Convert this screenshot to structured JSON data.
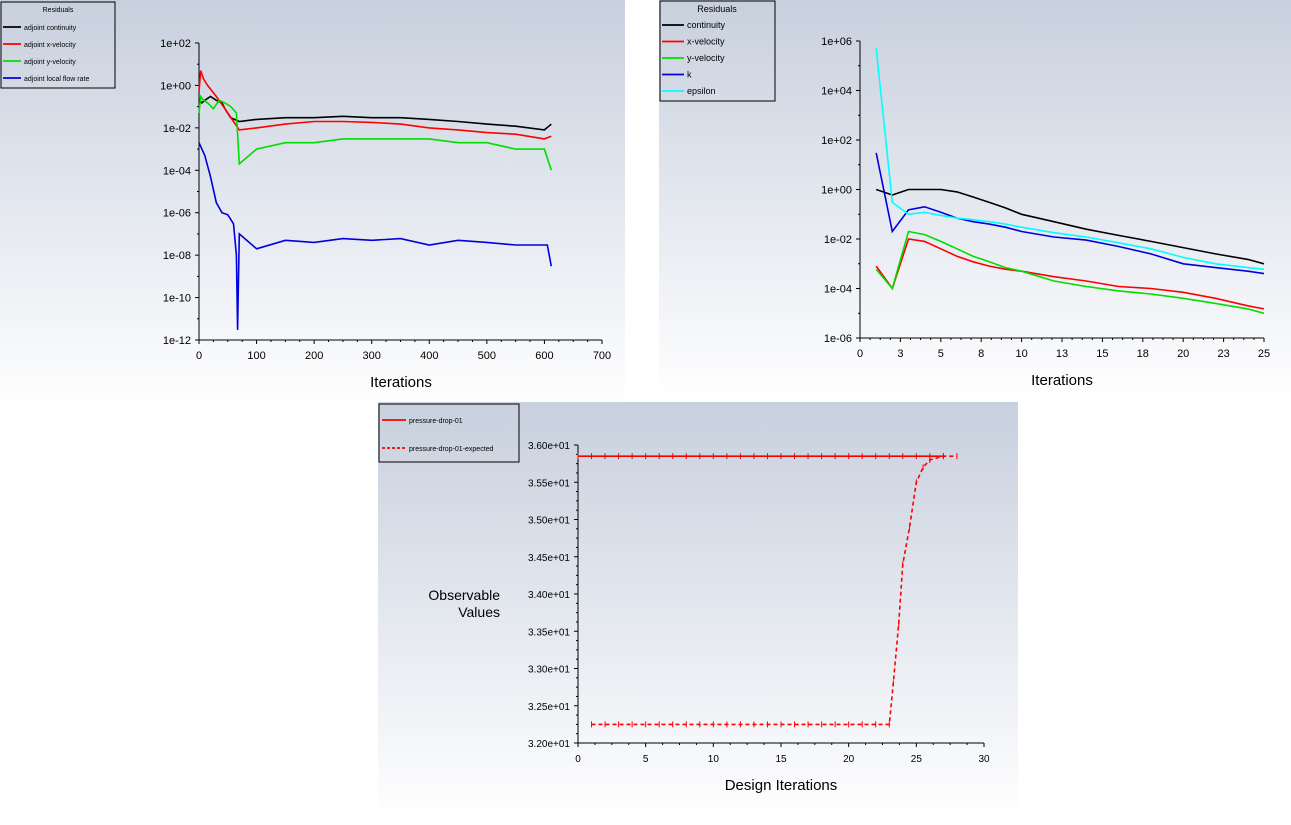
{
  "colors": {
    "bg_top": "#c8d0de",
    "bg_bottom": "#ffffff",
    "black": "#000000",
    "red": "#ff0000",
    "green": "#00dd00",
    "blue": "#0000dd",
    "cyan": "#00ffff"
  },
  "chart_data": [
    {
      "type": "line",
      "id": "adjoint",
      "legend_title": "Residuals",
      "xlabel": "Iterations",
      "ylabel": "",
      "xlim": [
        0,
        700
      ],
      "ylim": [
        1e-12,
        100
      ],
      "yscale": "log",
      "x_ticks": [
        "0",
        "100",
        "200",
        "300",
        "400",
        "500",
        "600",
        "700"
      ],
      "x_tick_values": [
        0,
        100,
        200,
        300,
        400,
        500,
        600,
        700
      ],
      "y_ticks": [
        "1e+02",
        "1e+00",
        "1e-02",
        "1e-04",
        "1e-06",
        "1e-08",
        "1e-10",
        "1e-12"
      ],
      "y_tick_values": [
        100.0,
        1.0,
        0.01,
        0.0001,
        1e-06,
        1e-08,
        1e-10,
        1e-12
      ],
      "series": [
        {
          "name": "adjoint continuity",
          "color": "black",
          "x": [
            0,
            5,
            10,
            20,
            30,
            40,
            45,
            55,
            70,
            100,
            150,
            200,
            250,
            300,
            350,
            400,
            450,
            500,
            550,
            600,
            612
          ],
          "y": [
            0.2,
            0.15,
            0.2,
            0.3,
            0.2,
            0.15,
            0.08,
            0.03,
            0.02,
            0.025,
            0.03,
            0.03,
            0.035,
            0.03,
            0.03,
            0.025,
            0.02,
            0.015,
            0.012,
            0.008,
            0.015
          ]
        },
        {
          "name": "adjoint x-velocity",
          "color": "red",
          "x": [
            0,
            3,
            8,
            15,
            30,
            45,
            60,
            70,
            100,
            150,
            200,
            250,
            300,
            350,
            400,
            450,
            500,
            550,
            600,
            612
          ],
          "y": [
            0.5,
            5,
            2,
            1.0,
            0.3,
            0.08,
            0.02,
            0.008,
            0.01,
            0.015,
            0.02,
            0.02,
            0.018,
            0.015,
            0.01,
            0.008,
            0.006,
            0.005,
            0.003,
            0.004
          ]
        },
        {
          "name": "adjoint y-velocity",
          "color": "green",
          "x": [
            0,
            3,
            8,
            15,
            25,
            35,
            45,
            55,
            65,
            70,
            100,
            150,
            200,
            250,
            300,
            350,
            400,
            450,
            500,
            550,
            600,
            612
          ],
          "y": [
            0.05,
            0.3,
            0.2,
            0.15,
            0.08,
            0.2,
            0.15,
            0.1,
            0.05,
            0.0002,
            0.001,
            0.002,
            0.002,
            0.003,
            0.003,
            0.003,
            0.003,
            0.002,
            0.002,
            0.001,
            0.001,
            0.0001
          ]
        },
        {
          "name": "adjoint local flow rate",
          "color": "blue",
          "x": [
            0,
            10,
            20,
            30,
            40,
            50,
            60,
            65,
            67,
            70,
            100,
            150,
            200,
            250,
            300,
            350,
            400,
            450,
            500,
            550,
            590,
            605,
            612
          ],
          "y": [
            0.002,
            0.0005,
            5e-05,
            3e-06,
            1e-06,
            8e-07,
            3e-07,
            1e-08,
            3e-12,
            1e-07,
            2e-08,
            5e-08,
            4e-08,
            6e-08,
            5e-08,
            6e-08,
            3e-08,
            5e-08,
            4e-08,
            3e-08,
            3e-08,
            3e-08,
            3e-09
          ]
        }
      ]
    },
    {
      "type": "line",
      "id": "flow",
      "legend_title": "Residuals",
      "xlabel": "Iterations",
      "ylabel": "",
      "xlim": [
        0,
        25
      ],
      "ylim": [
        1e-06,
        1000000.0
      ],
      "yscale": "log",
      "x_ticks": [
        "0",
        "3",
        "5",
        "8",
        "10",
        "13",
        "15",
        "18",
        "20",
        "23",
        "25"
      ],
      "x_tick_values": [
        0,
        2.5,
        5,
        7.5,
        10,
        12.5,
        15,
        17.5,
        20,
        22.5,
        25
      ],
      "y_ticks": [
        "1e+06",
        "1e+04",
        "1e+02",
        "1e+00",
        "1e-02",
        "1e-04",
        "1e-06"
      ],
      "y_tick_values": [
        1000000.0,
        10000.0,
        100.0,
        1.0,
        0.01,
        0.0001,
        1e-06
      ],
      "series": [
        {
          "name": "continuity",
          "color": "black",
          "x": [
            1,
            2,
            3,
            4,
            5,
            6,
            7,
            8,
            9,
            10,
            12,
            14,
            16,
            18,
            20,
            22,
            24,
            25
          ],
          "y": [
            1,
            0.6,
            1,
            1,
            1,
            0.8,
            0.5,
            0.3,
            0.18,
            0.1,
            0.05,
            0.025,
            0.014,
            0.008,
            0.0045,
            0.0025,
            0.0015,
            0.001
          ]
        },
        {
          "name": "x-velocity",
          "color": "red",
          "x": [
            1,
            2,
            3,
            4,
            5,
            6,
            7,
            8,
            9,
            10,
            12,
            14,
            16,
            18,
            20,
            22,
            24,
            25
          ],
          "y": [
            0.0008,
            0.0001,
            0.01,
            0.008,
            0.004,
            0.002,
            0.0012,
            0.0008,
            0.0006,
            0.0005,
            0.0003,
            0.0002,
            0.00012,
            0.0001,
            7e-05,
            4e-05,
            2e-05,
            1.5e-05
          ]
        },
        {
          "name": "y-velocity",
          "color": "green",
          "x": [
            1,
            2,
            3,
            4,
            5,
            6,
            7,
            8,
            9,
            10,
            12,
            14,
            16,
            18,
            20,
            22,
            24,
            25
          ],
          "y": [
            0.0006,
            0.0001,
            0.02,
            0.015,
            0.008,
            0.004,
            0.002,
            0.0012,
            0.0007,
            0.0005,
            0.0002,
            0.00012,
            8e-05,
            6e-05,
            4e-05,
            2.5e-05,
            1.5e-05,
            1e-05
          ]
        },
        {
          "name": "k",
          "color": "blue",
          "x": [
            1,
            2,
            3,
            4,
            5,
            6,
            7,
            8,
            9,
            10,
            12,
            14,
            16,
            18,
            20,
            22,
            24,
            25
          ],
          "y": [
            30,
            0.02,
            0.15,
            0.2,
            0.12,
            0.07,
            0.05,
            0.04,
            0.03,
            0.02,
            0.012,
            0.009,
            0.005,
            0.0025,
            0.001,
            0.0007,
            0.0005,
            0.0004
          ]
        },
        {
          "name": "epsilon",
          "color": "cyan",
          "x": [
            1,
            2,
            3,
            4,
            5,
            6,
            7,
            8,
            9,
            10,
            12,
            14,
            16,
            18,
            20,
            22,
            24,
            25
          ],
          "y": [
            500000,
            0.3,
            0.1,
            0.12,
            0.09,
            0.07,
            0.06,
            0.05,
            0.04,
            0.03,
            0.018,
            0.012,
            0.007,
            0.004,
            0.0018,
            0.001,
            0.0007,
            0.0006
          ]
        }
      ]
    },
    {
      "type": "line",
      "id": "observable",
      "legend_title": "",
      "xlabel": "Design Iterations",
      "ylabel_lines": [
        "Observable",
        "Values"
      ],
      "xlim": [
        0,
        30
      ],
      "ylim": [
        32.0,
        36.0
      ],
      "yscale": "linear",
      "x_ticks": [
        "0",
        "5",
        "10",
        "15",
        "20",
        "25",
        "30"
      ],
      "x_tick_values": [
        0,
        5,
        10,
        15,
        20,
        25,
        30
      ],
      "y_ticks": [
        "3.60e+01",
        "3.55e+01",
        "3.50e+01",
        "3.45e+01",
        "3.40e+01",
        "3.35e+01",
        "3.30e+01",
        "3.25e+01",
        "3.20e+01"
      ],
      "y_tick_values": [
        36.0,
        35.5,
        35.0,
        34.5,
        34.0,
        33.5,
        33.0,
        32.5,
        32.0
      ],
      "series": [
        {
          "name": "pressure-drop-01",
          "color": "red",
          "style": "solid",
          "x": [
            0,
            1,
            2,
            3,
            4,
            5,
            6,
            7,
            8,
            9,
            10,
            11,
            12,
            13,
            14,
            15,
            16,
            17,
            18,
            19,
            20,
            21,
            22,
            23,
            24,
            25,
            26,
            27
          ],
          "y": [
            35.85,
            35.85,
            35.85,
            35.85,
            35.85,
            35.85,
            35.85,
            35.85,
            35.85,
            35.85,
            35.85,
            35.85,
            35.85,
            35.85,
            35.85,
            35.85,
            35.85,
            35.85,
            35.85,
            35.85,
            35.85,
            35.85,
            35.85,
            35.85,
            35.85,
            35.85,
            35.85,
            35.85
          ]
        },
        {
          "name": "pressure-drop-01-expected",
          "color": "red",
          "style": "dashed",
          "x": [
            1,
            2,
            3,
            4,
            5,
            6,
            7,
            8,
            9,
            10,
            11,
            12,
            13,
            14,
            15,
            16,
            17,
            18,
            19,
            20,
            21,
            22,
            23,
            23.3,
            23.7,
            24,
            24.5,
            25,
            25.5,
            26,
            27,
            28
          ],
          "y": [
            32.25,
            32.25,
            32.25,
            32.25,
            32.25,
            32.25,
            32.25,
            32.25,
            32.25,
            32.25,
            32.25,
            32.25,
            32.25,
            32.25,
            32.25,
            32.25,
            32.25,
            32.25,
            32.25,
            32.25,
            32.25,
            32.25,
            32.25,
            32.8,
            33.6,
            34.4,
            34.9,
            35.5,
            35.7,
            35.8,
            35.85,
            35.85
          ]
        }
      ]
    }
  ]
}
